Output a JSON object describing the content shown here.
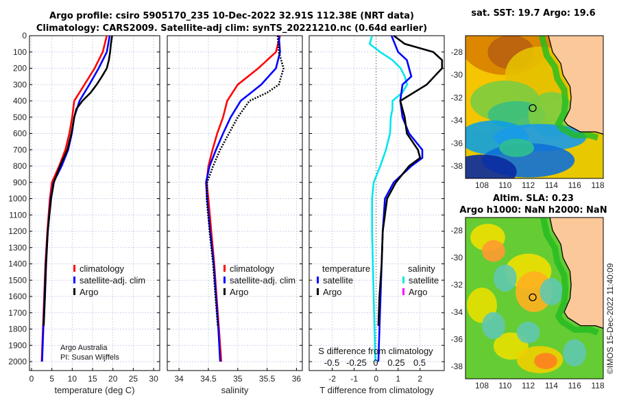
{
  "title": {
    "line1": "Argo profile: csiro 5905170_235 10-Dec-2022 32.91S 112.38E (NRT data)",
    "line2": "Climatology: CARS2009. Satellite-adj clim: synTS_20221210.nc (0.64d earlier)"
  },
  "credit": {
    "line1": "Argo Australia",
    "line2": "PI: Susan Wijffels"
  },
  "watermark": "©IMOS 15-Dec-2022 11:40:09",
  "colors": {
    "climatology": "#ff0000",
    "satellite": "#0000ff",
    "argo": "#000000",
    "sal_satellite": "#00e5ee",
    "sal_argo": "#ff00ff"
  },
  "chart_data": [
    {
      "type": "line",
      "xlabel": "temperature (deg C)",
      "xlim": [
        -0.5,
        31.5
      ],
      "ylim": [
        2050,
        0
      ],
      "xticks": [
        0,
        5,
        10,
        15,
        20,
        25,
        30
      ],
      "yticks": [
        0,
        100,
        200,
        300,
        400,
        500,
        600,
        700,
        800,
        900,
        1000,
        1100,
        1200,
        1300,
        1400,
        1500,
        1600,
        1700,
        1800,
        1900,
        2000
      ],
      "legend": [
        "climatology",
        "satellite-adj. clim",
        "Argo"
      ],
      "series": [
        {
          "name": "climatology",
          "depth": [
            0,
            100,
            200,
            300,
            400,
            500,
            600,
            700,
            800,
            900,
            1000,
            1200,
            1400,
            1600,
            1800,
            2000
          ],
          "values": [
            18.5,
            17.5,
            15.5,
            13,
            10.5,
            10,
            9.3,
            8.3,
            6.8,
            5,
            4.5,
            3.9,
            3.4,
            3.1,
            2.8,
            2.5
          ]
        },
        {
          "name": "satellite-adj. clim",
          "depth": [
            0,
            100,
            200,
            300,
            400,
            500,
            600,
            700,
            800,
            900,
            1000,
            1200,
            1400,
            1600,
            1800,
            2000
          ],
          "values": [
            19.2,
            18.5,
            16.5,
            14.2,
            11.8,
            10.5,
            9.9,
            9,
            7.4,
            5.4,
            4.7,
            4,
            3.5,
            3.2,
            2.9,
            2.6
          ]
        },
        {
          "name": "Argo",
          "depth": [
            0,
            50,
            100,
            150,
            200,
            250,
            300,
            350,
            400,
            450,
            500,
            600,
            700,
            800,
            900,
            1000,
            1200,
            1400,
            1600,
            1780
          ],
          "values": [
            19.8,
            19.5,
            19.3,
            19,
            18.5,
            17.3,
            16,
            14.5,
            12.5,
            11,
            10.5,
            9.8,
            8.8,
            7,
            5.5,
            4.8,
            4,
            3.6,
            3.3,
            3
          ]
        }
      ]
    },
    {
      "type": "line",
      "xlabel": "salinity",
      "xlim": [
        33.8,
        36.1
      ],
      "ylim": [
        2050,
        0
      ],
      "xticks": [
        34,
        34.5,
        35,
        35.5,
        36
      ],
      "legend": [
        "climatology",
        "satellite-adj. clim",
        "Argo"
      ],
      "series": [
        {
          "name": "climatology",
          "depth": [
            0,
            100,
            200,
            300,
            400,
            500,
            600,
            700,
            800,
            900,
            1000,
            1200,
            1400,
            1600,
            1800,
            2000
          ],
          "values": [
            35.72,
            35.65,
            35.35,
            35,
            34.82,
            34.75,
            34.65,
            34.57,
            34.5,
            34.47,
            34.5,
            34.55,
            34.6,
            34.64,
            34.68,
            34.72
          ]
        },
        {
          "name": "satellite-adj. clim",
          "depth": [
            0,
            100,
            200,
            300,
            400,
            500,
            600,
            700,
            800,
            900,
            1000,
            1200,
            1400,
            1600,
            1800,
            2000
          ],
          "values": [
            35.7,
            35.72,
            35.65,
            35.4,
            35.05,
            34.88,
            34.75,
            34.63,
            34.52,
            34.46,
            34.48,
            34.53,
            34.59,
            34.63,
            34.67,
            34.7
          ]
        },
        {
          "name": "Argo",
          "depth": [
            0,
            100,
            200,
            300,
            350,
            400,
            500,
            600,
            700,
            800,
            900,
            1000,
            1200,
            1400,
            1600,
            1780
          ],
          "values": [
            35.68,
            35.7,
            35.78,
            35.7,
            35.5,
            35.2,
            35,
            34.85,
            34.7,
            34.58,
            34.48,
            34.47,
            34.52,
            34.58,
            34.62,
            34.66
          ]
        }
      ]
    },
    {
      "type": "line",
      "xlabel": "T difference from climatology",
      "x2label": "S difference from climatology",
      "xlim": [
        -3.05,
        3.1
      ],
      "ylim": [
        2050,
        0
      ],
      "xticks": [
        -2,
        -1,
        0,
        1,
        2
      ],
      "x2ticks": [
        "-0.5",
        "-0.25",
        "0",
        "0.25",
        "0.5"
      ],
      "legend_t_title": "temperature",
      "legend_s_title": "salinity",
      "legend_t": [
        "satellite",
        "Argo"
      ],
      "legend_s": [
        "satellite",
        "Argo"
      ],
      "series": [
        {
          "name": "T satellite",
          "depth": [
            0,
            100,
            150,
            200,
            250,
            300,
            400,
            500,
            600,
            700,
            750,
            800,
            900,
            1000,
            1200,
            1400,
            1600,
            1800,
            2000
          ],
          "values": [
            0.7,
            1,
            1.4,
            1.5,
            1.6,
            1.2,
            1.1,
            1.2,
            1.5,
            2.1,
            2.1,
            1.6,
            0.8,
            0.4,
            0.3,
            0.25,
            0.2,
            0.15,
            0.1
          ]
        },
        {
          "name": "T Argo",
          "depth": [
            0,
            50,
            100,
            150,
            200,
            300,
            400,
            500,
            600,
            700,
            750,
            800,
            900,
            1000,
            1200,
            1400,
            1500,
            1600,
            1780
          ],
          "values": [
            0.8,
            1.3,
            2.6,
            3,
            3,
            2.3,
            1.1,
            1.3,
            1.4,
            1.9,
            2,
            1.5,
            0.9,
            0.5,
            0.3,
            0.25,
            0.2,
            0.15,
            0.1
          ]
        },
        {
          "name": "S satellite",
          "units": "salinity",
          "depth": [
            0,
            50,
            100,
            150,
            200,
            250,
            300,
            350,
            400,
            450,
            500,
            600,
            700,
            800,
            900,
            1000,
            1200,
            1400,
            1600,
            1800,
            2000
          ],
          "values": [
            -0.05,
            -0.08,
            0.05,
            0.2,
            0.3,
            0.35,
            0.38,
            0.32,
            0.2,
            0.2,
            0.18,
            0.17,
            0.12,
            0.05,
            -0.03,
            -0.05,
            -0.05,
            -0.04,
            -0.03,
            -0.02,
            -0.01
          ]
        }
      ]
    },
    {
      "type": "heatmap",
      "title": "sat. SST: 19.7 Argo: 19.6",
      "xticks": [
        108,
        110,
        112,
        114,
        116,
        118
      ],
      "yticks": [
        -28,
        -30,
        -32,
        -34,
        -36,
        -38
      ],
      "marker": {
        "lon": 112.38,
        "lat": -32.91
      }
    },
    {
      "type": "heatmap",
      "title1": "Altim. SLA: 0.23",
      "title2": "Argo h1000: NaN h2000: NaN",
      "xticks": [
        108,
        110,
        112,
        114,
        116,
        118
      ],
      "yticks": [
        -28,
        -30,
        -32,
        -34,
        -36,
        -38
      ],
      "marker": {
        "lon": 112.38,
        "lat": -32.91
      }
    }
  ]
}
